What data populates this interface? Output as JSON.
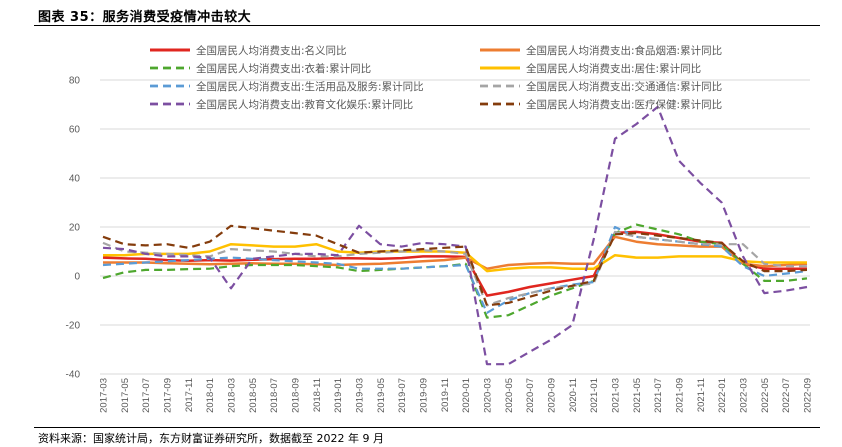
{
  "header": {
    "title": "图表 35：服务消费受疫情冲击较大"
  },
  "footer": {
    "source": "资料来源：国家统计局，东方财富证券研究所，数据截至 2022 年 9 月"
  },
  "chart_data": {
    "type": "line",
    "title": "",
    "xlabel": "",
    "ylabel": "",
    "ylim": [
      -40,
      80
    ],
    "yticks": [
      -40,
      -20,
      0,
      20,
      40,
      60,
      80
    ],
    "grid": true,
    "legend_position": "top",
    "x": [
      "2017-03",
      "2017-05",
      "2017-07",
      "2017-09",
      "2017-11",
      "2018-01",
      "2018-03",
      "2018-05",
      "2018-07",
      "2018-09",
      "2018-11",
      "2019-01",
      "2019-03",
      "2019-05",
      "2019-07",
      "2019-09",
      "2019-11",
      "2020-01",
      "2020-03",
      "2020-05",
      "2020-07",
      "2020-09",
      "2020-11",
      "2021-01",
      "2021-03",
      "2021-05",
      "2021-07",
      "2021-09",
      "2021-11",
      "2022-01",
      "2022-03",
      "2022-05",
      "2022-07",
      "2022-09"
    ],
    "series": [
      {
        "name": "全国居民人均消费支出:名义同比",
        "color": "#e0261f",
        "dash": "solid",
        "width": 2.5,
        "values": [
          7.5,
          7.2,
          7.0,
          6.5,
          6.2,
          6.5,
          6.3,
          6.6,
          6.9,
          7.0,
          7.0,
          7.3,
          7.2,
          7.0,
          7.3,
          8.0,
          8.0,
          7.8,
          -8.0,
          -6.5,
          -4.5,
          -3.0,
          -1.5,
          0.0,
          17.6,
          18.0,
          17.0,
          15.5,
          14.0,
          13.6,
          5.0,
          3.0,
          3.0,
          3.0
        ]
      },
      {
        "name": "全国居民人均消费支出:食品烟酒:累计同比",
        "color": "#ed7d31",
        "dash": "solid",
        "width": 2.5,
        "values": [
          5.5,
          5.5,
          5.5,
          5.2,
          5.0,
          4.8,
          5.0,
          5.2,
          5.0,
          5.0,
          4.8,
          4.5,
          4.8,
          5.0,
          5.5,
          6.0,
          6.5,
          7.5,
          3.0,
          4.5,
          5.0,
          5.3,
          5.0,
          5.0,
          16.0,
          14.0,
          13.0,
          12.5,
          12.0,
          12.0,
          5.0,
          4.0,
          4.5,
          5.0
        ]
      },
      {
        "name": "全国居民人均消费支出:衣着:累计同比",
        "color": "#4ea72e",
        "dash": "dash",
        "width": 2.2,
        "values": [
          -0.8,
          1.5,
          2.5,
          2.5,
          2.8,
          3.0,
          4.0,
          4.5,
          4.5,
          4.5,
          4.0,
          3.5,
          2.0,
          2.5,
          3.0,
          3.5,
          4.0,
          5.0,
          -17.0,
          -16.0,
          -12.0,
          -8.0,
          -5.0,
          -2.0,
          17.5,
          21.0,
          19.0,
          17.0,
          14.0,
          13.0,
          5.0,
          -2.0,
          -2.0,
          -1.0
        ]
      },
      {
        "name": "全国居民人均消费支出:居住:累计同比",
        "color": "#ffc000",
        "dash": "solid",
        "width": 2.5,
        "values": [
          8.5,
          8.5,
          9.0,
          9.0,
          9.0,
          10.0,
          13.0,
          12.5,
          12.0,
          12.0,
          13.0,
          10.0,
          9.5,
          10.0,
          10.0,
          10.0,
          10.0,
          9.5,
          2.0,
          3.0,
          3.5,
          3.5,
          3.0,
          3.0,
          8.5,
          7.5,
          7.5,
          8.0,
          8.0,
          8.0,
          6.0,
          5.5,
          5.5,
          5.5
        ]
      },
      {
        "name": "全国居民人均消费支出:生活用品及服务:累计同比",
        "color": "#5b9bd5",
        "dash": "dash",
        "width": 2.2,
        "values": [
          4.5,
          5.0,
          5.5,
          6.0,
          6.5,
          7.0,
          7.5,
          7.0,
          6.5,
          6.0,
          5.5,
          5.0,
          3.0,
          3.0,
          3.0,
          3.5,
          4.0,
          4.5,
          -15.0,
          -10.0,
          -7.0,
          -5.0,
          -3.5,
          -2.5,
          20.0,
          16.0,
          15.0,
          14.0,
          13.0,
          12.0,
          4.0,
          0.0,
          1.0,
          2.0
        ]
      },
      {
        "name": "全国居民人均消费支出:交通通信:累计同比",
        "color": "#a5a5a5",
        "dash": "dash",
        "width": 2.2,
        "values": [
          13.5,
          10.0,
          9.5,
          9.0,
          8.5,
          8.0,
          11.0,
          10.5,
          10.0,
          9.0,
          8.0,
          8.0,
          9.0,
          9.5,
          10.0,
          10.5,
          10.0,
          9.0,
          -12.0,
          -9.0,
          -7.0,
          -5.0,
          -4.0,
          -3.0,
          18.0,
          16.0,
          15.0,
          14.0,
          13.0,
          13.0,
          13.0,
          5.0,
          4.0,
          4.0
        ]
      },
      {
        "name": "全国居民人均消费支出:教育文化娱乐:累计同比",
        "color": "#7c4fa1",
        "dash": "dash",
        "width": 2.2,
        "values": [
          11.5,
          11.0,
          9.0,
          8.0,
          8.0,
          7.5,
          -5.0,
          7.0,
          8.0,
          9.0,
          9.0,
          8.5,
          20.5,
          13.0,
          12.0,
          13.5,
          13.0,
          12.0,
          -36.0,
          -36.0,
          -31.0,
          -26.0,
          -20.0,
          15.0,
          56.0,
          62.0,
          69.0,
          47.0,
          38.0,
          30.0,
          8.0,
          -7.0,
          -6.0,
          -4.5
        ]
      },
      {
        "name": "全国居民人均消费支出:医疗保健:累计同比",
        "color": "#843c0c",
        "dash": "dash",
        "width": 2.2,
        "values": [
          16.0,
          13.0,
          12.5,
          13.0,
          11.5,
          14.0,
          20.5,
          19.5,
          18.5,
          17.5,
          16.5,
          13.0,
          9.5,
          10.0,
          10.5,
          11.0,
          11.5,
          12.0,
          -12.0,
          -11.0,
          -8.5,
          -6.0,
          -4.0,
          -2.0,
          17.0,
          17.5,
          16.5,
          15.5,
          14.5,
          13.5,
          6.0,
          2.0,
          2.0,
          2.5
        ]
      }
    ]
  }
}
